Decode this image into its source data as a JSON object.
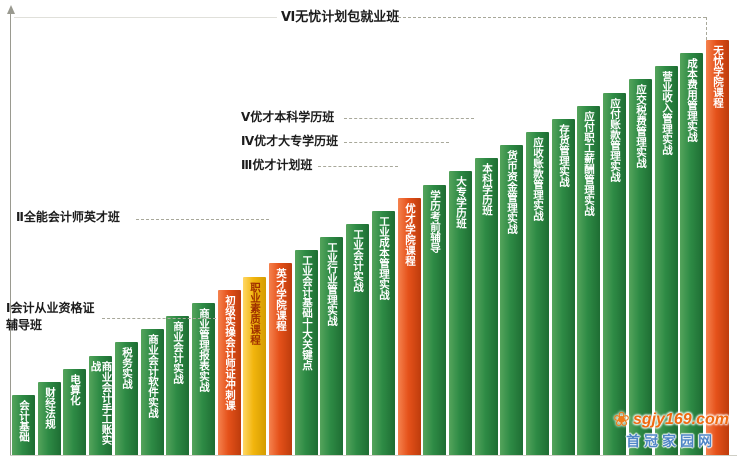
{
  "watermark": {
    "site": "sgjy169.com",
    "name": "首冠家园网"
  },
  "colors": {
    "bar_green": "#2e8b45",
    "bar_orange": "#e5511a",
    "bar_yellow": "#f2b50d",
    "yellow_bar_text": "#a03000",
    "bar_text": "#ffffff",
    "level_text": "#1c1c1c"
  },
  "chart_data": {
    "type": "bar",
    "title": "",
    "xlabel": "",
    "ylabel": "",
    "categories": [
      "会计基础",
      "财经法规",
      "电算化",
      "商业会计手工账实战",
      "税务实战",
      "商业会计软件实战",
      "商业会计实战",
      "商业管理报表实战",
      "初级实操会计师证冲刺课",
      "职业素质课程",
      "英才学院课程",
      "工业会计基础十大关键点",
      "工业行业管理实战",
      "工业会计实战",
      "工业成本管理实战",
      "优才学院课程",
      "学历考前辅导",
      "大专学历班",
      "本科学历班",
      "货币资金管理实战",
      "应收账款管理实战",
      "存货管理实战",
      "应付职工薪酬管理实战",
      "应付账款管理实战",
      "应交税费管理实战",
      "营业收入管理实战",
      "成本费用管理实战",
      "无忧学院课程"
    ],
    "values": [
      1,
      2,
      3,
      4,
      5,
      6,
      7,
      8,
      9,
      10,
      11,
      12,
      13,
      14,
      15,
      16,
      17,
      18,
      19,
      20,
      21,
      22,
      23,
      24,
      25,
      26,
      27,
      28
    ],
    "values_note": "step rank of each course bar; bars rise monotonically left to right (no numeric value axis shown)",
    "bar_colors": [
      "green",
      "green",
      "green",
      "green",
      "green",
      "green",
      "green",
      "green",
      "orange",
      "yellow",
      "orange",
      "green",
      "green",
      "green",
      "green",
      "orange",
      "green",
      "green",
      "green",
      "green",
      "green",
      "green",
      "green",
      "green",
      "green",
      "green",
      "green",
      "orange"
    ],
    "levels": [
      {
        "label": "Ⅰ会计从业资格证辅导班",
        "target_category": "初级实操会计师证冲刺课"
      },
      {
        "label": "Ⅱ全能会计师英才班",
        "target_category": "英才学院课程"
      },
      {
        "label": "Ⅲ优才计划班",
        "target_category": "优才学院课程"
      },
      {
        "label": "Ⅳ优才大专学历班",
        "target_category": "大专学历班"
      },
      {
        "label": "Ⅴ优才本科学历班",
        "target_category": "本科学历班"
      },
      {
        "label": "Ⅵ无忧计划包就业班",
        "target_category": "无忧学院课程"
      }
    ],
    "legend": "none",
    "grid": false
  }
}
